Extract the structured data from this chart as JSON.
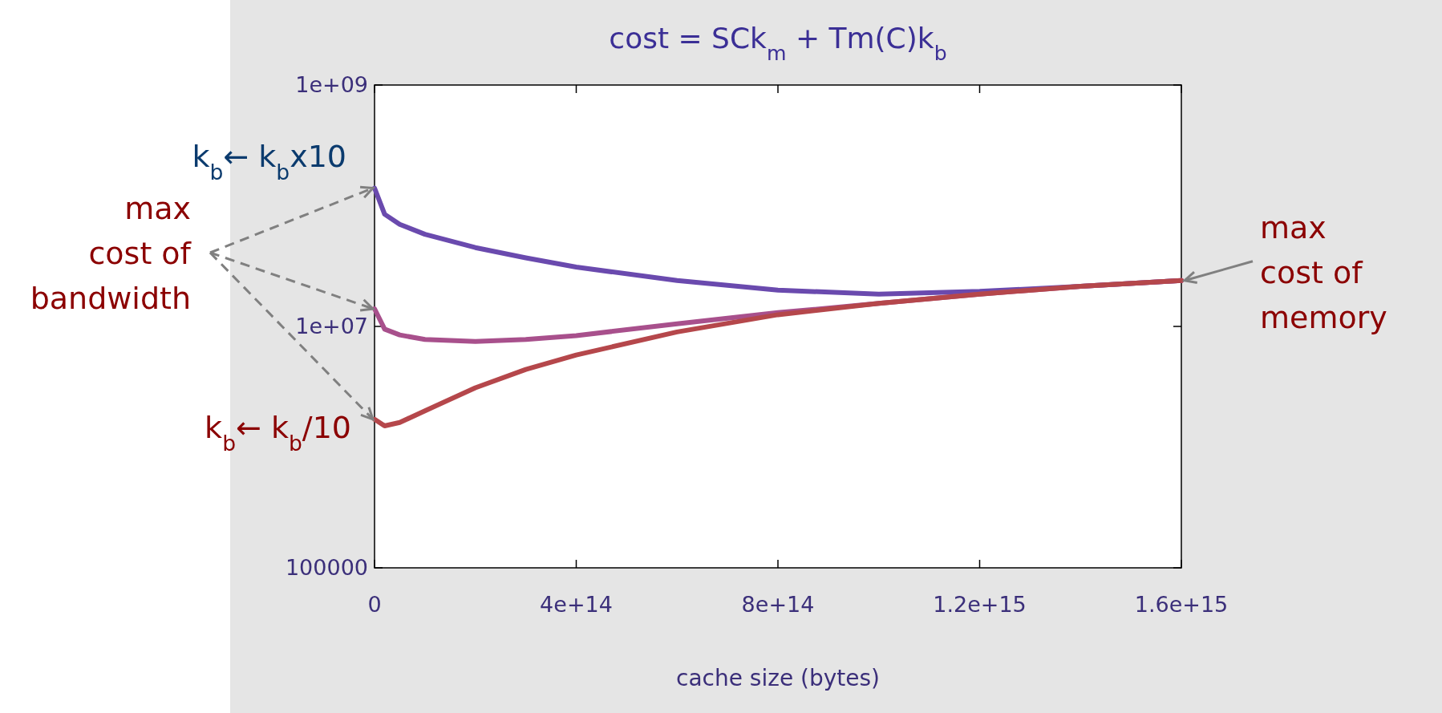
{
  "chart_data": {
    "type": "line",
    "title": "cost = SCk$_{m}$ + Tm(C)k$_{b}$",
    "xlabel": "cache size (bytes)",
    "xlim": [
      0,
      1600000000000000.0
    ],
    "xticks": [
      0,
      {
        "value": 400000000000000.0,
        "label": "4e+14"
      },
      {
        "value": 800000000000000.0,
        "label": "8e+14"
      },
      {
        "value": 1200000000000000.0,
        "label": "1.2e+15"
      },
      {
        "value": 1600000000000000.0,
        "label": "1.6e+15"
      }
    ],
    "ylim": [
      100000,
      1000000000
    ],
    "yticks": [
      100000,
      {
        "value": 10000000,
        "label": "1e+07"
      },
      {
        "value": 1000000000,
        "label": "1e+09"
      }
    ],
    "log": "y",
    "grid": false,
    "x": [
      0,
      20000000000000.0,
      50000000000000.0,
      100000000000000.0,
      200000000000000.0,
      300000000000000.0,
      400000000000000.0,
      600000000000000.0,
      800000000000000.0,
      1000000000000000.0,
      1200000000000000.0,
      1400000000000000.0,
      1600000000000000.0
    ],
    "series": [
      {
        "color": "#6a4aae",
        "values": [
          140000000,
          85000000,
          70000000,
          58000000,
          45000000,
          37000000,
          31000000,
          24000000,
          20000000,
          18500000,
          19500000,
          21500000,
          24000000
        ]
      },
      {
        "color": "#a8508c",
        "values": [
          14000000,
          9500000,
          8500000,
          7800000,
          7500000,
          7800000,
          8400000,
          10500000,
          13000000,
          15500000,
          18500000,
          21500000,
          24000000
        ]
      },
      {
        "color": "#b5474b",
        "values": [
          1700000,
          1500000,
          1600000,
          2000000,
          3100000,
          4400000,
          5800000,
          9000000,
          12500000,
          15500000,
          18500000,
          21500000,
          24000000
        ]
      }
    ],
    "annotations": [
      "k$_{b}$← k$_{b}$x10",
      "max cost of bandwidth",
      "k$_{b}$← k$_{b}$/10",
      "max cost of memory"
    ]
  }
}
